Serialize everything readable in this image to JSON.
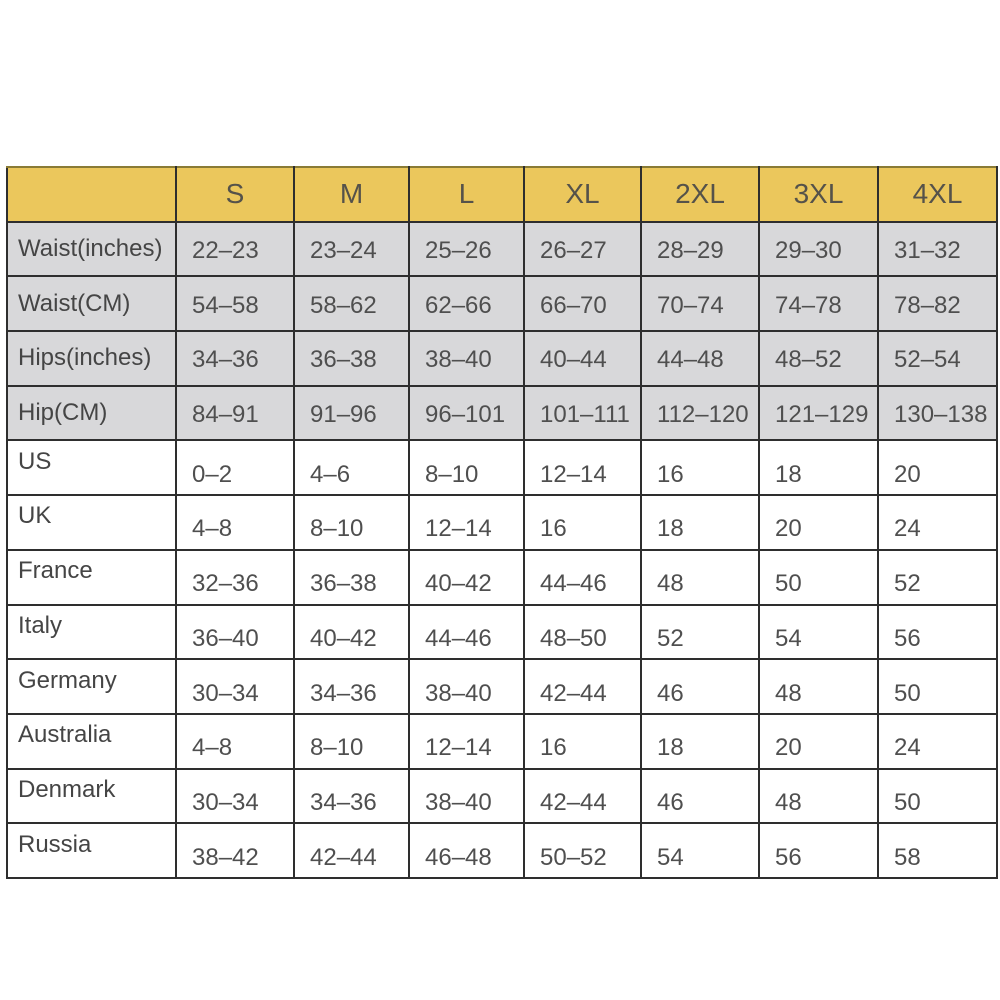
{
  "table": {
    "header": [
      "",
      "S",
      "M",
      "L",
      "XL",
      "2XL",
      "3XL",
      "4XL"
    ],
    "measure_rows": [
      {
        "label": "Waist(inches)",
        "values": [
          "22–23",
          "23–24",
          "25–26",
          "26–27",
          "28–29",
          "29–30",
          "31–32"
        ]
      },
      {
        "label": "Waist(CM)",
        "values": [
          "54–58",
          "58–62",
          "62–66",
          "66–70",
          "70–74",
          "74–78",
          "78–82"
        ]
      },
      {
        "label": "Hips(inches)",
        "values": [
          "34–36",
          "36–38",
          "38–40",
          "40–44",
          "44–48",
          "48–52",
          "52–54"
        ]
      },
      {
        "label": "Hip(CM)",
        "values": [
          "84–91",
          "91–96",
          "96–101",
          "101–111",
          "112–120",
          "121–129",
          "130–138"
        ]
      }
    ],
    "country_rows": [
      {
        "label": "US",
        "values": [
          "0–2",
          "4–6",
          "8–10",
          "12–14",
          "16",
          "18",
          "20"
        ]
      },
      {
        "label": "UK",
        "values": [
          "4–8",
          "8–10",
          "12–14",
          "16",
          "18",
          "20",
          "24"
        ]
      },
      {
        "label": "France",
        "values": [
          "32–36",
          "36–38",
          "40–42",
          "44–46",
          "48",
          "50",
          "52"
        ]
      },
      {
        "label": "Italy",
        "values": [
          "36–40",
          "40–42",
          "44–46",
          "48–50",
          "52",
          "54",
          "56"
        ]
      },
      {
        "label": "Germany",
        "values": [
          "30–34",
          "34–36",
          "38–40",
          "42–44",
          "46",
          "48",
          "50"
        ]
      },
      {
        "label": "Australia",
        "values": [
          "4–8",
          "8–10",
          "12–14",
          "16",
          "18",
          "20",
          "24"
        ]
      },
      {
        "label": "Denmark",
        "values": [
          "30–34",
          "34–36",
          "38–40",
          "42–44",
          "46",
          "48",
          "50"
        ]
      },
      {
        "label": "Russia",
        "values": [
          "38–42",
          "42–44",
          "46–48",
          "50–52",
          "54",
          "56",
          "58"
        ]
      }
    ],
    "colors": {
      "header_bg": "#ebc75c",
      "measure_bg": "#d8d8da",
      "border": "#2e2e2e",
      "text": "#4a4a4a"
    }
  }
}
